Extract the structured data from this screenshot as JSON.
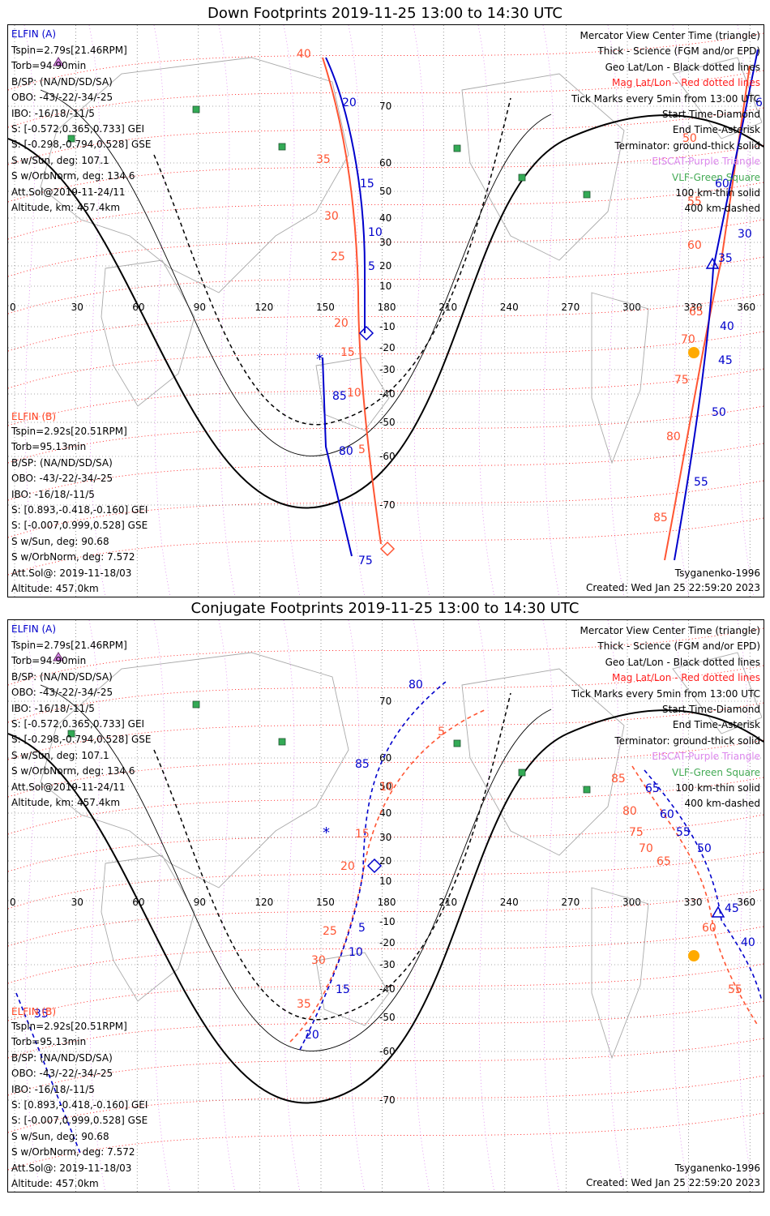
{
  "panels": [
    {
      "title": "Down Footprints 2019-11-25 13:00 to 14:30 UTC",
      "elfin_a": {
        "name": "ELFIN (A)",
        "lines": [
          "Tspin=2.79s[21.46RPM]",
          "Torb=94.90min",
          "B/SP: (NA/ND/SD/SA)",
          "OBO: -43/-22/-34/-25",
          "IBO: -16/18/-11/5",
          "S: [-0.572,0.365,0.733] GEI",
          "S: [-0.298,-0.794,0.528] GSE",
          "S w/Sun, deg: 107.1",
          "S w/OrbNorm, deg: 134.6",
          "Att.Sol@2019-11-24/11",
          "Altitude, km: 457.4km"
        ]
      },
      "elfin_b": {
        "name": "ELFIN (B)",
        "lines": [
          "Tspin=2.92s[20.51RPM]",
          "Torb=95.13min",
          "B/SP: (NA/ND/SD/SA)",
          "OBO: -43/-22/-34/-25",
          "IBO: -16/18/-11/5",
          "S: [0.893,-0.418,-0.160] GEI",
          "S: [-0.007,0.999,0.528] GSE",
          "S w/Sun, deg: 90.68",
          "S w/OrbNorm, deg: 7.572",
          "Att.Sol@: 2019-11-18/03",
          "Altitude: 457.0km"
        ]
      },
      "legend": [
        "Mercator View Center Time (triangle)",
        "Thick - Science (FGM and/or EPD)",
        "Geo Lat/Lon - Black dotted lines",
        "Mag Lat/Lon - Red dotted lines",
        "Tick Marks every 5min from 13:00 UTC",
        "Start Time-Diamond",
        "End Time-Asterisk",
        "Terminator: ground-thick solid",
        "EISCAT-Purple Triangle",
        "VLF-Green Square",
        "100 km-thin solid",
        "400 km-dashed"
      ],
      "footer_model": "Tsyganenko-1996",
      "footer_created": "Created: Wed Jan 25 22:59:20 2023",
      "blue_ticks": [
        "20",
        "15",
        "10",
        "5",
        "85",
        "80",
        "75",
        "30",
        "35",
        "40",
        "45",
        "50",
        "55",
        "60",
        "65"
      ],
      "orange_ticks": [
        "40",
        "35",
        "30",
        "25",
        "20",
        "15",
        "10",
        "5",
        "50",
        "55",
        "60",
        "65",
        "70",
        "75",
        "80",
        "85"
      ]
    },
    {
      "title": "Conjugate Footprints 2019-11-25 13:00 to 14:30 UTC",
      "elfin_a": {
        "name": "ELFIN (A)",
        "lines": [
          "Tspin=2.79s[21.46RPM]",
          "Torb=94.90min",
          "B/SP: (NA/ND/SD/SA)",
          "OBO: -43/-22/-34/-25",
          "IBO: -16/18/-11/5",
          "S: [-0.572,0.365,0.733] GEI",
          "S: [-0.298,-0.794,0.528] GSE",
          "S w/Sun, deg: 107.1",
          "S w/OrbNorm, deg: 134.6",
          "Att.Sol@2019-11-24/11",
          "Altitude, km: 457.4km"
        ]
      },
      "elfin_b": {
        "name": "ELFIN (B)",
        "lines": [
          "Tspin=2.92s[20.51RPM]",
          "Torb=95.13min",
          "B/SP: (NA/ND/SD/SA)",
          "OBO: -43/-22/-34/-25",
          "IBO: -16/18/-11/5",
          "S: [0.893,-0.418,-0.160] GEI",
          "S: [-0.007,0.999,0.528] GSE",
          "S w/Sun, deg: 90.68",
          "S w/OrbNorm, deg: 7.572",
          "Att.Sol@: 2019-11-18/03",
          "Altitude: 457.0km"
        ]
      },
      "legend": [
        "Mercator View Center Time (triangle)",
        "Thick - Science (FGM and/or EPD)",
        "Geo Lat/Lon - Black dotted lines",
        "Mag Lat/Lon - Red dotted lines",
        "Tick Marks every 5min from 13:00 UTC",
        "Start Time-Diamond",
        "End Time-Asterisk",
        "Terminator: ground-thick solid",
        "EISCAT-Purple Triangle",
        "VLF-Green Square",
        "100 km-thin solid",
        "400 km-dashed"
      ],
      "footer_model": "Tsyganenko-1996",
      "footer_created": "Created: Wed Jan 25 22:59:20 2023",
      "blue_ticks": [
        "80",
        "85",
        "5",
        "10",
        "15",
        "20",
        "35",
        "65",
        "60",
        "55",
        "50",
        "45",
        "40"
      ],
      "orange_ticks": [
        "5",
        "10",
        "15",
        "20",
        "25",
        "30",
        "35",
        "85",
        "80",
        "75",
        "70",
        "65",
        "60",
        "55"
      ]
    }
  ],
  "lon_ticks": [
    "0",
    "30",
    "60",
    "90",
    "120",
    "150",
    "180",
    "210",
    "240",
    "270",
    "300",
    "330",
    "360"
  ],
  "lat_ticks": [
    "70",
    "60",
    "50",
    "40",
    "30",
    "20",
    "10",
    "-10",
    "-20",
    "-30",
    "-40",
    "-50",
    "-60",
    "-70"
  ],
  "colors": {
    "elfin_a": "#0000cc",
    "elfin_b": "#ff5533",
    "geo_grid": "#000000",
    "mag_grid": "#ff0000",
    "eiscat": "#dd88ee",
    "vlf": "#33aa55",
    "sun": "#ffaa00"
  }
}
